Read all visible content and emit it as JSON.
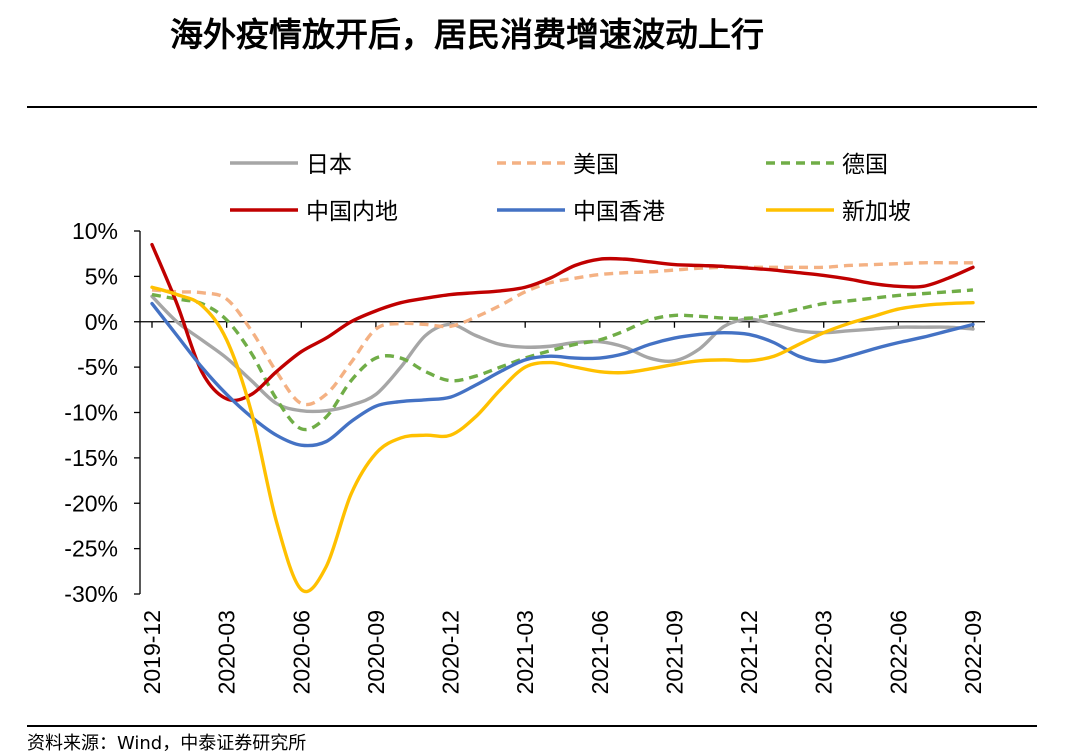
{
  "title": "海外疫情放开后，居民消费增速波动上行",
  "source_note": "资料来源：Wind，中泰证券研究所",
  "chart_data": {
    "type": "line",
    "xlabel": "",
    "ylabel": "",
    "ylim": [
      -30,
      10
    ],
    "y_ticks": [
      10,
      5,
      0,
      -5,
      -10,
      -15,
      -20,
      -25,
      -30
    ],
    "y_tick_labels": [
      "10%",
      "5%",
      "0%",
      "-5%",
      "-10%",
      "-15%",
      "-20%",
      "-25%",
      "-30%"
    ],
    "x_tick_labels": [
      "2019-12",
      "2020-03",
      "2020-06",
      "2020-09",
      "2020-12",
      "2021-03",
      "2021-06",
      "2021-09",
      "2021-12",
      "2022-03",
      "2022-06",
      "2022-09"
    ],
    "categories": [
      "2019-12",
      "2020-01",
      "2020-02",
      "2020-03",
      "2020-04",
      "2020-05",
      "2020-06",
      "2020-07",
      "2020-08",
      "2020-09",
      "2020-10",
      "2020-11",
      "2020-12",
      "2021-01",
      "2021-02",
      "2021-03",
      "2021-04",
      "2021-05",
      "2021-06",
      "2021-07",
      "2021-08",
      "2021-09",
      "2021-10",
      "2021-11",
      "2021-12",
      "2022-01",
      "2022-02",
      "2022-03",
      "2022-04",
      "2022-05",
      "2022-06",
      "2022-07",
      "2022-08",
      "2022-09"
    ],
    "series": [
      {
        "name": "日本",
        "color": "#a6a6a6",
        "dash": "solid",
        "values": [
          2.8,
          0.0,
          -2.0,
          -4.0,
          -6.5,
          -9.0,
          -9.8,
          -9.8,
          -9.2,
          -8.0,
          -5.0,
          -1.5,
          -0.3,
          -1.5,
          -2.5,
          -2.8,
          -2.7,
          -2.3,
          -2.2,
          -2.8,
          -4.0,
          -4.3,
          -3.0,
          -0.5,
          0.3,
          -0.3,
          -1.0,
          -1.2,
          -1.0,
          -0.8,
          -0.6,
          -0.6,
          -0.6,
          -0.8
        ]
      },
      {
        "name": "美国",
        "color": "#f4b183",
        "dash": "dashed",
        "values": [
          3.5,
          3.3,
          3.2,
          2.5,
          -1.0,
          -5.5,
          -9.0,
          -8.0,
          -4.5,
          -0.8,
          -0.2,
          -0.3,
          -0.5,
          0.5,
          1.8,
          3.3,
          4.3,
          4.8,
          5.2,
          5.4,
          5.5,
          5.7,
          5.9,
          6.0,
          6.0,
          6.0,
          6.0,
          6.0,
          6.2,
          6.3,
          6.4,
          6.5,
          6.5,
          6.5
        ]
      },
      {
        "name": "德国",
        "color": "#70ad47",
        "dash": "dashed",
        "values": [
          3.0,
          2.5,
          2.0,
          0.2,
          -3.5,
          -8.5,
          -11.8,
          -10.5,
          -6.5,
          -4.0,
          -4.0,
          -5.5,
          -6.5,
          -6.0,
          -5.0,
          -4.0,
          -3.2,
          -2.5,
          -2.0,
          -1.0,
          0.2,
          0.7,
          0.6,
          0.4,
          0.4,
          0.8,
          1.4,
          2.0,
          2.3,
          2.6,
          2.9,
          3.1,
          3.3,
          3.5
        ]
      },
      {
        "name": "中国内地",
        "color": "#c00000",
        "dash": "solid",
        "values": [
          8.5,
          2.0,
          -5.5,
          -8.5,
          -8.0,
          -5.5,
          -3.3,
          -1.8,
          0.0,
          1.2,
          2.1,
          2.6,
          3.0,
          3.2,
          3.4,
          3.8,
          4.8,
          6.2,
          6.9,
          6.9,
          6.6,
          6.3,
          6.2,
          6.1,
          5.9,
          5.7,
          5.4,
          5.1,
          4.7,
          4.2,
          3.9,
          3.9,
          4.8,
          6.0
        ]
      },
      {
        "name": "中国香港",
        "color": "#4472c4",
        "dash": "solid",
        "values": [
          2.0,
          -1.5,
          -5.0,
          -8.0,
          -10.5,
          -12.5,
          -13.6,
          -13.2,
          -11.0,
          -9.3,
          -8.8,
          -8.6,
          -8.3,
          -7.0,
          -5.5,
          -4.2,
          -3.8,
          -4.0,
          -4.0,
          -3.5,
          -2.5,
          -1.8,
          -1.4,
          -1.2,
          -1.4,
          -2.3,
          -3.8,
          -4.4,
          -3.8,
          -3.0,
          -2.3,
          -1.7,
          -1.0,
          -0.3
        ]
      },
      {
        "name": "新加坡",
        "color": "#ffc000",
        "dash": "solid",
        "values": [
          3.8,
          3.0,
          1.8,
          -2.0,
          -10.0,
          -22.0,
          -29.5,
          -27.0,
          -19.0,
          -14.5,
          -12.8,
          -12.5,
          -12.5,
          -10.5,
          -7.5,
          -5.0,
          -4.5,
          -5.0,
          -5.5,
          -5.6,
          -5.2,
          -4.7,
          -4.3,
          -4.2,
          -4.3,
          -3.8,
          -2.5,
          -1.2,
          -0.2,
          0.6,
          1.4,
          1.8,
          2.0,
          2.1
        ]
      }
    ]
  }
}
